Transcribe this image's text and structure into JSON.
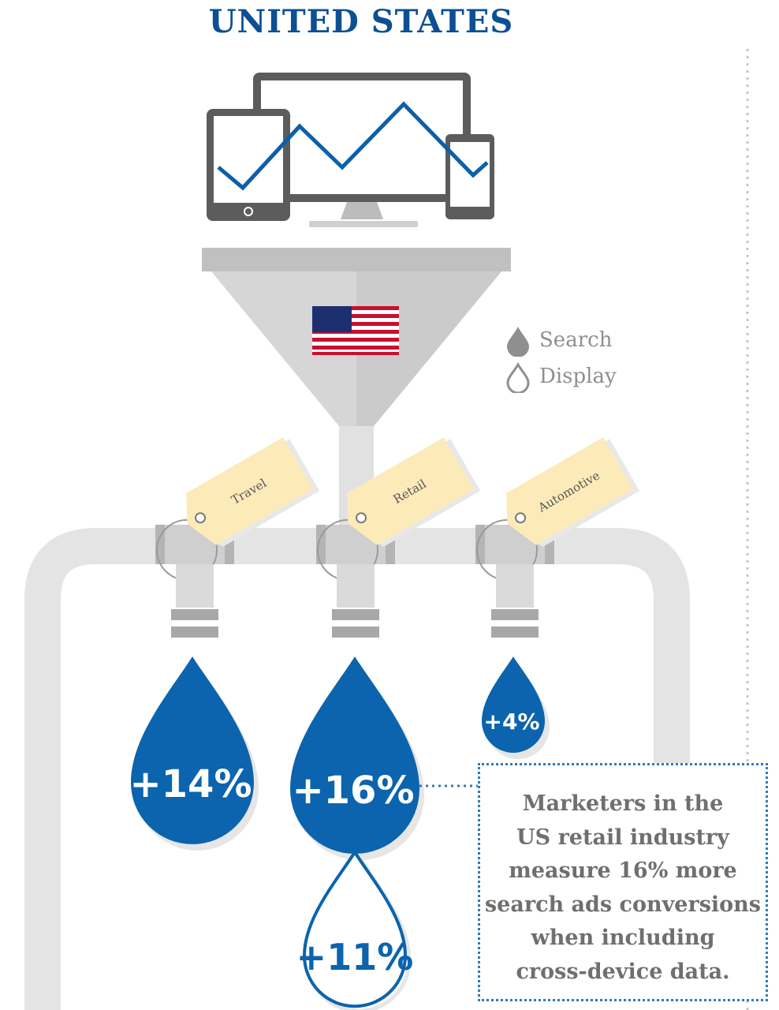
{
  "title": "UNITED STATES",
  "colors": {
    "title": "#0d4f93",
    "drop_blue": "#0b64ad",
    "drop_outline": "#0b64ad",
    "pipe": "#e2e2e2",
    "pipe_dark": "#bdbdbd",
    "tag": "#fcebb9",
    "device_frame": "#585858",
    "chart_line": "#0d60a8",
    "funnel": "#d2d2d2",
    "callout_border": "#2f7ab8",
    "callout_text": "#6f6f6f",
    "legend_text": "#8f8f8f"
  },
  "legend": {
    "items": [
      {
        "icon": "filled-drop-icon",
        "label": "Search"
      },
      {
        "icon": "outline-drop-icon",
        "label": "Display"
      }
    ]
  },
  "icons": {
    "devices": "devices-icon",
    "flag": "us-flag-icon",
    "funnel": "funnel-icon"
  },
  "taps": [
    {
      "tag": "Travel",
      "search": "+14%"
    },
    {
      "tag": "Retail",
      "search": "+16%",
      "display": "+11%"
    },
    {
      "tag": "Automotive",
      "search": "+4%"
    }
  ],
  "callout": {
    "lines": [
      "Marketers in the",
      "US retail industry",
      "measure 16% more",
      "search ads conversions",
      "when including",
      "cross-device data."
    ]
  }
}
